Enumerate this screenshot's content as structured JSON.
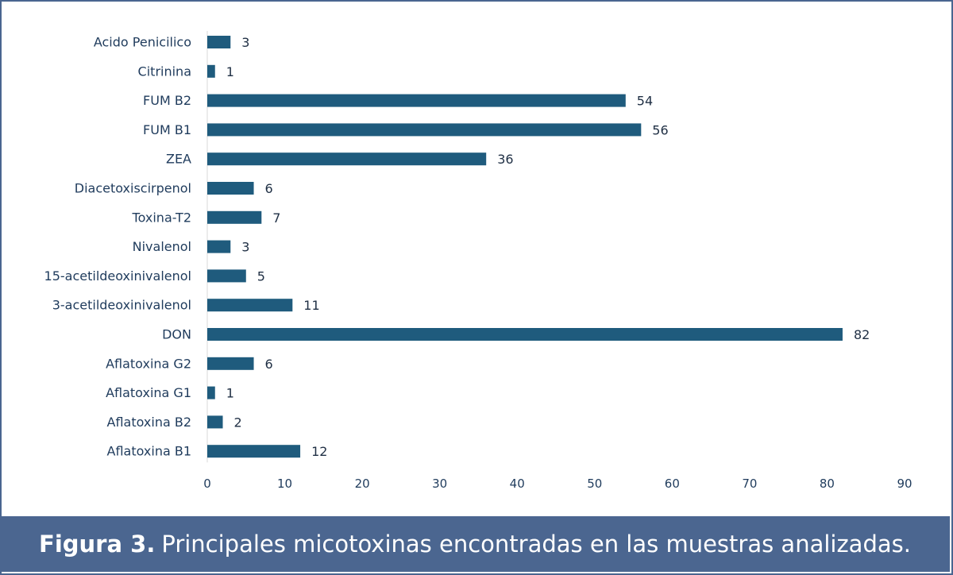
{
  "chart_data": {
    "type": "bar",
    "orientation": "horizontal",
    "categories": [
      "Acido Penicilico",
      "Citrinina",
      "FUM B2",
      "FUM B1",
      "ZEA",
      "Diacetoxiscirpenol",
      "Toxina-T2",
      "Nivalenol",
      "15-acetildeoxinivalenol",
      "3-acetildeoxinivalenol",
      "DON",
      "Aflatoxina G2",
      "Aflatoxina G1",
      "Aflatoxina B2",
      "Aflatoxina B1"
    ],
    "values": [
      3,
      1,
      54,
      56,
      36,
      6,
      7,
      3,
      5,
      11,
      82,
      6,
      1,
      2,
      12
    ],
    "xlim": [
      0,
      90
    ],
    "xticks": [
      0,
      10,
      20,
      30,
      40,
      50,
      60,
      70,
      80,
      90
    ],
    "grid": false,
    "bar_color": "#1f5b7d",
    "data_labels": true
  },
  "caption": {
    "label": "Figura 3.",
    "text": "Principales micotoxinas encontradas en las muestras analizadas."
  },
  "colors": {
    "frame": "#4a6590",
    "caption_bg": "#4b6690",
    "caption_text": "#ffffff"
  }
}
